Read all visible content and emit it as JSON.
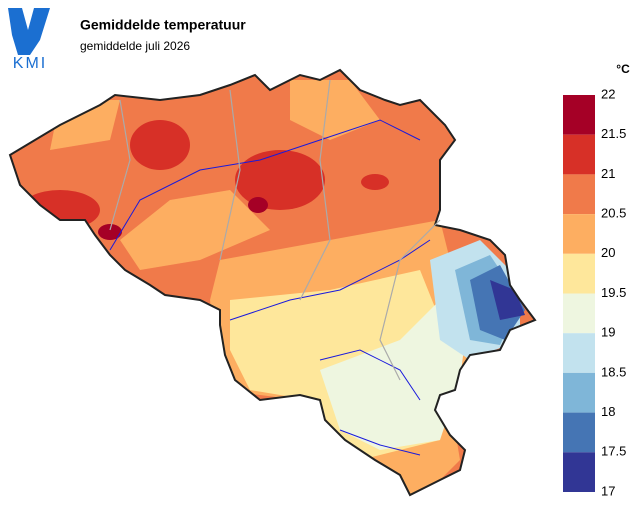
{
  "header": {
    "logo": "KMI",
    "title": "Gemiddelde temperatuur",
    "subtitle": "gemiddelde juli 2026"
  },
  "legend": {
    "unit": "°C",
    "ticks": [
      22,
      21.5,
      21,
      20.5,
      20,
      19.5,
      19,
      18.5,
      18,
      17.5,
      17
    ],
    "colors": [
      "#a50026",
      "#d73027",
      "#f07a4a",
      "#fdae61",
      "#fee79b",
      "#eef6e0",
      "#c2e2ee",
      "#7fb6d8",
      "#4575b4",
      "#313695"
    ]
  }
}
